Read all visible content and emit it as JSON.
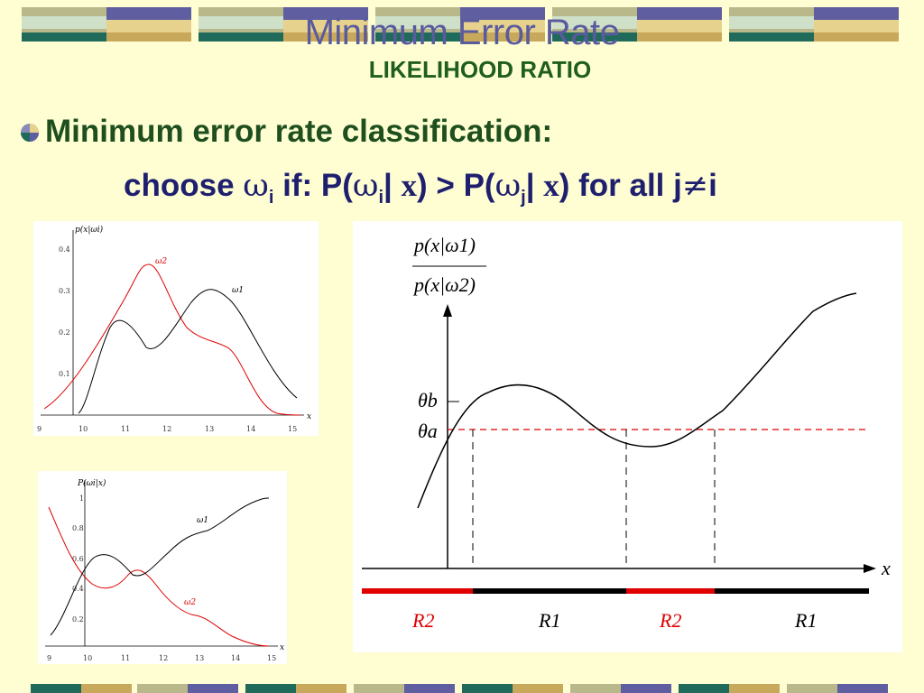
{
  "slide": {
    "title": "Minimum Error Rate",
    "subtitle": "LIKELIHOOD RATIO",
    "bullet": "Minimum error rate classification:",
    "rule": {
      "choose": "choose",
      "omega": "ω",
      "sub_i": "i",
      "if_p": "if: P(",
      "bar": "|",
      "x": "x",
      "gt_p": ") > P(",
      "sub_j": "j",
      "end": ") for all j",
      "neq": "≠",
      "end_i": "i"
    }
  },
  "figure_a": {
    "ylabel": "p(x|ωi)",
    "yticks": [
      "0.1",
      "0.2",
      "0.3",
      "0.4"
    ],
    "xticks": [
      "9",
      "10",
      "11",
      "12",
      "13",
      "14",
      "15"
    ],
    "xaxis": "x",
    "series": [
      {
        "name": "ω1",
        "color": "#000000"
      },
      {
        "name": "ω2",
        "color": "#dd0000"
      }
    ]
  },
  "figure_b": {
    "ylabel": "P(ωi|x)",
    "yticks": [
      "0.2",
      "0.4",
      "0.6",
      "0.8",
      "1"
    ],
    "xticks": [
      "9",
      "10",
      "11",
      "12",
      "13",
      "14",
      "15"
    ],
    "xaxis": "x",
    "series": [
      {
        "name": "ω1",
        "color": "#000000"
      },
      {
        "name": "ω2",
        "color": "#dd0000"
      }
    ]
  },
  "figure_c": {
    "ratio_num": "p(x|ω1)",
    "ratio_den": "p(x|ω2)",
    "theta_b": "θb",
    "theta_a": "θa",
    "xaxis": "x",
    "regions": [
      "R2",
      "R1",
      "R2",
      "R1"
    ],
    "region_colors": [
      "#e00000",
      "#000000",
      "#e00000",
      "#000000"
    ]
  }
}
